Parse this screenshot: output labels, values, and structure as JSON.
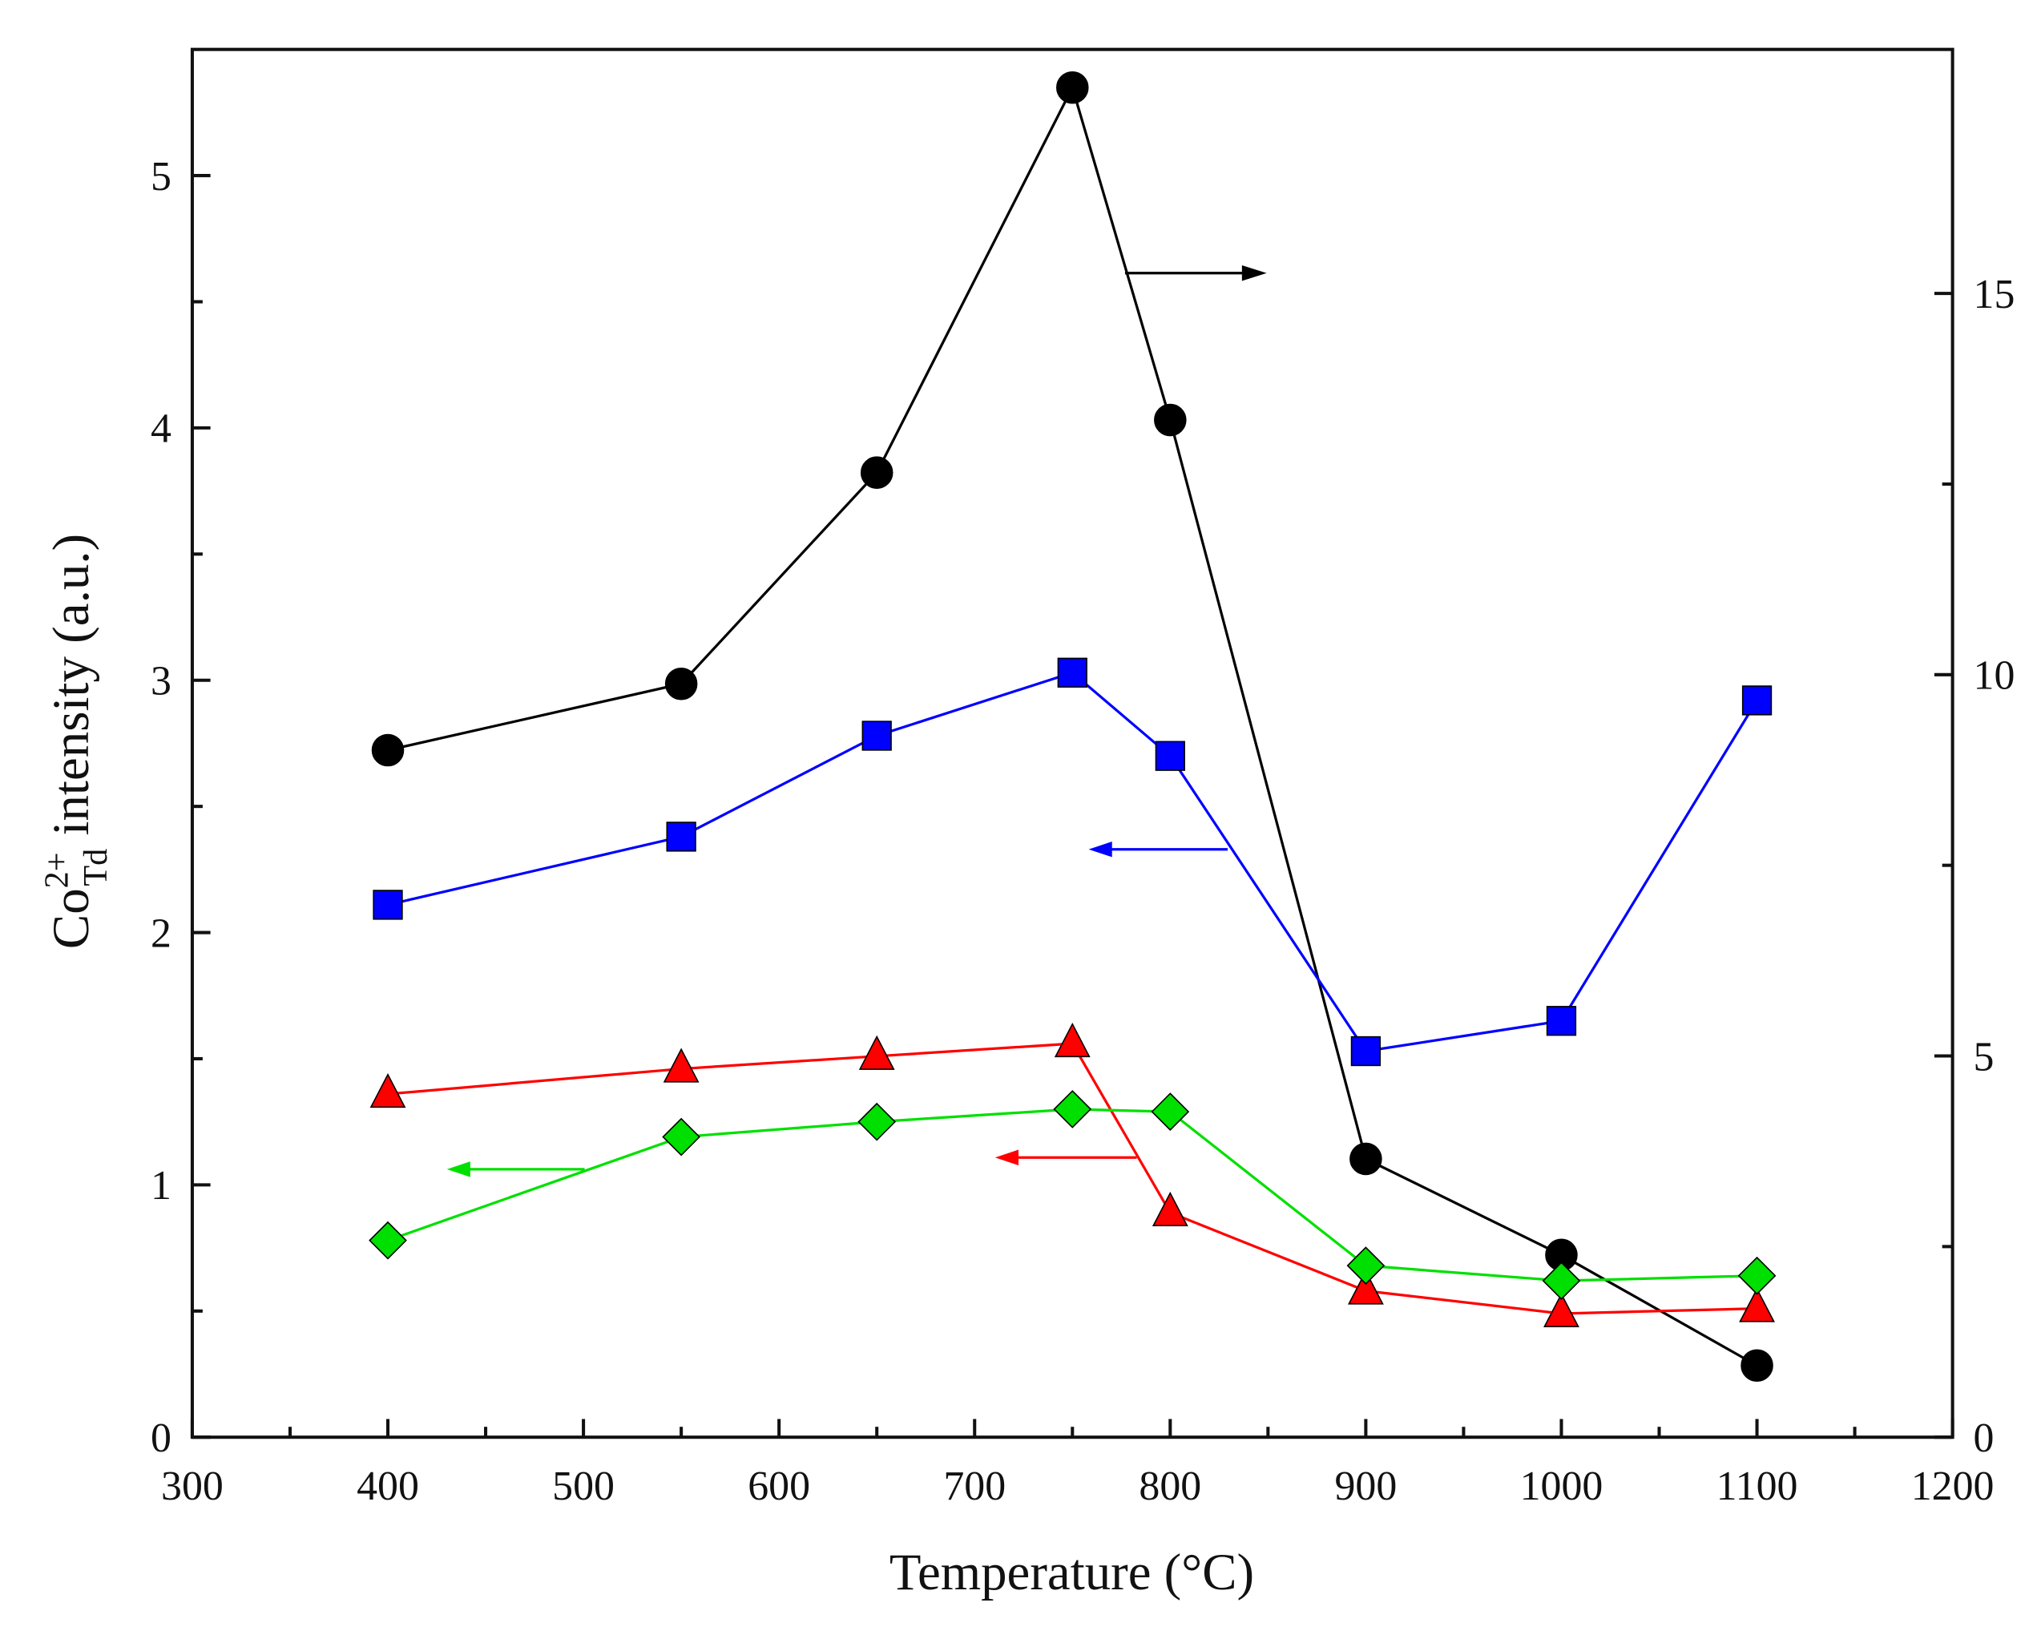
{
  "chart_data": {
    "type": "line",
    "x_label": "Temperature (°C)",
    "y_label": {
      "base": "Co",
      "sup": "2+",
      "sub": "Td",
      "rest": " intensity (a.u.)"
    },
    "x": [
      400,
      550,
      650,
      750,
      800,
      900,
      1000,
      1100
    ],
    "xlim": [
      300,
      1200
    ],
    "xticks": [
      300,
      400,
      500,
      600,
      700,
      800,
      900,
      1000,
      1100,
      1200
    ],
    "ylim": [
      0,
      5.5
    ],
    "yticks": [
      0,
      1,
      2,
      3,
      4,
      5
    ],
    "y2lim": [
      0,
      18.2
    ],
    "y2ticks": [
      0,
      5,
      10,
      15
    ],
    "series": [
      {
        "color": "#000000",
        "marker": "circle",
        "axis": "y2",
        "values": [
          9.01,
          9.88,
          12.65,
          17.7,
          13.34,
          3.65,
          2.39,
          0.94
        ]
      },
      {
        "color": "#0000ff",
        "marker": "square",
        "values": [
          2.11,
          2.38,
          2.78,
          3.03,
          2.7,
          1.53,
          1.65,
          2.92
        ]
      },
      {
        "color": "#ff0000",
        "marker": "triangle",
        "values": [
          1.36,
          1.46,
          1.51,
          1.56,
          0.89,
          0.58,
          0.49,
          0.51
        ]
      },
      {
        "color": "#00e000",
        "marker": "diamond",
        "values": [
          0.78,
          1.19,
          1.25,
          1.3,
          1.29,
          0.68,
          0.62,
          0.64
        ]
      }
    ]
  }
}
